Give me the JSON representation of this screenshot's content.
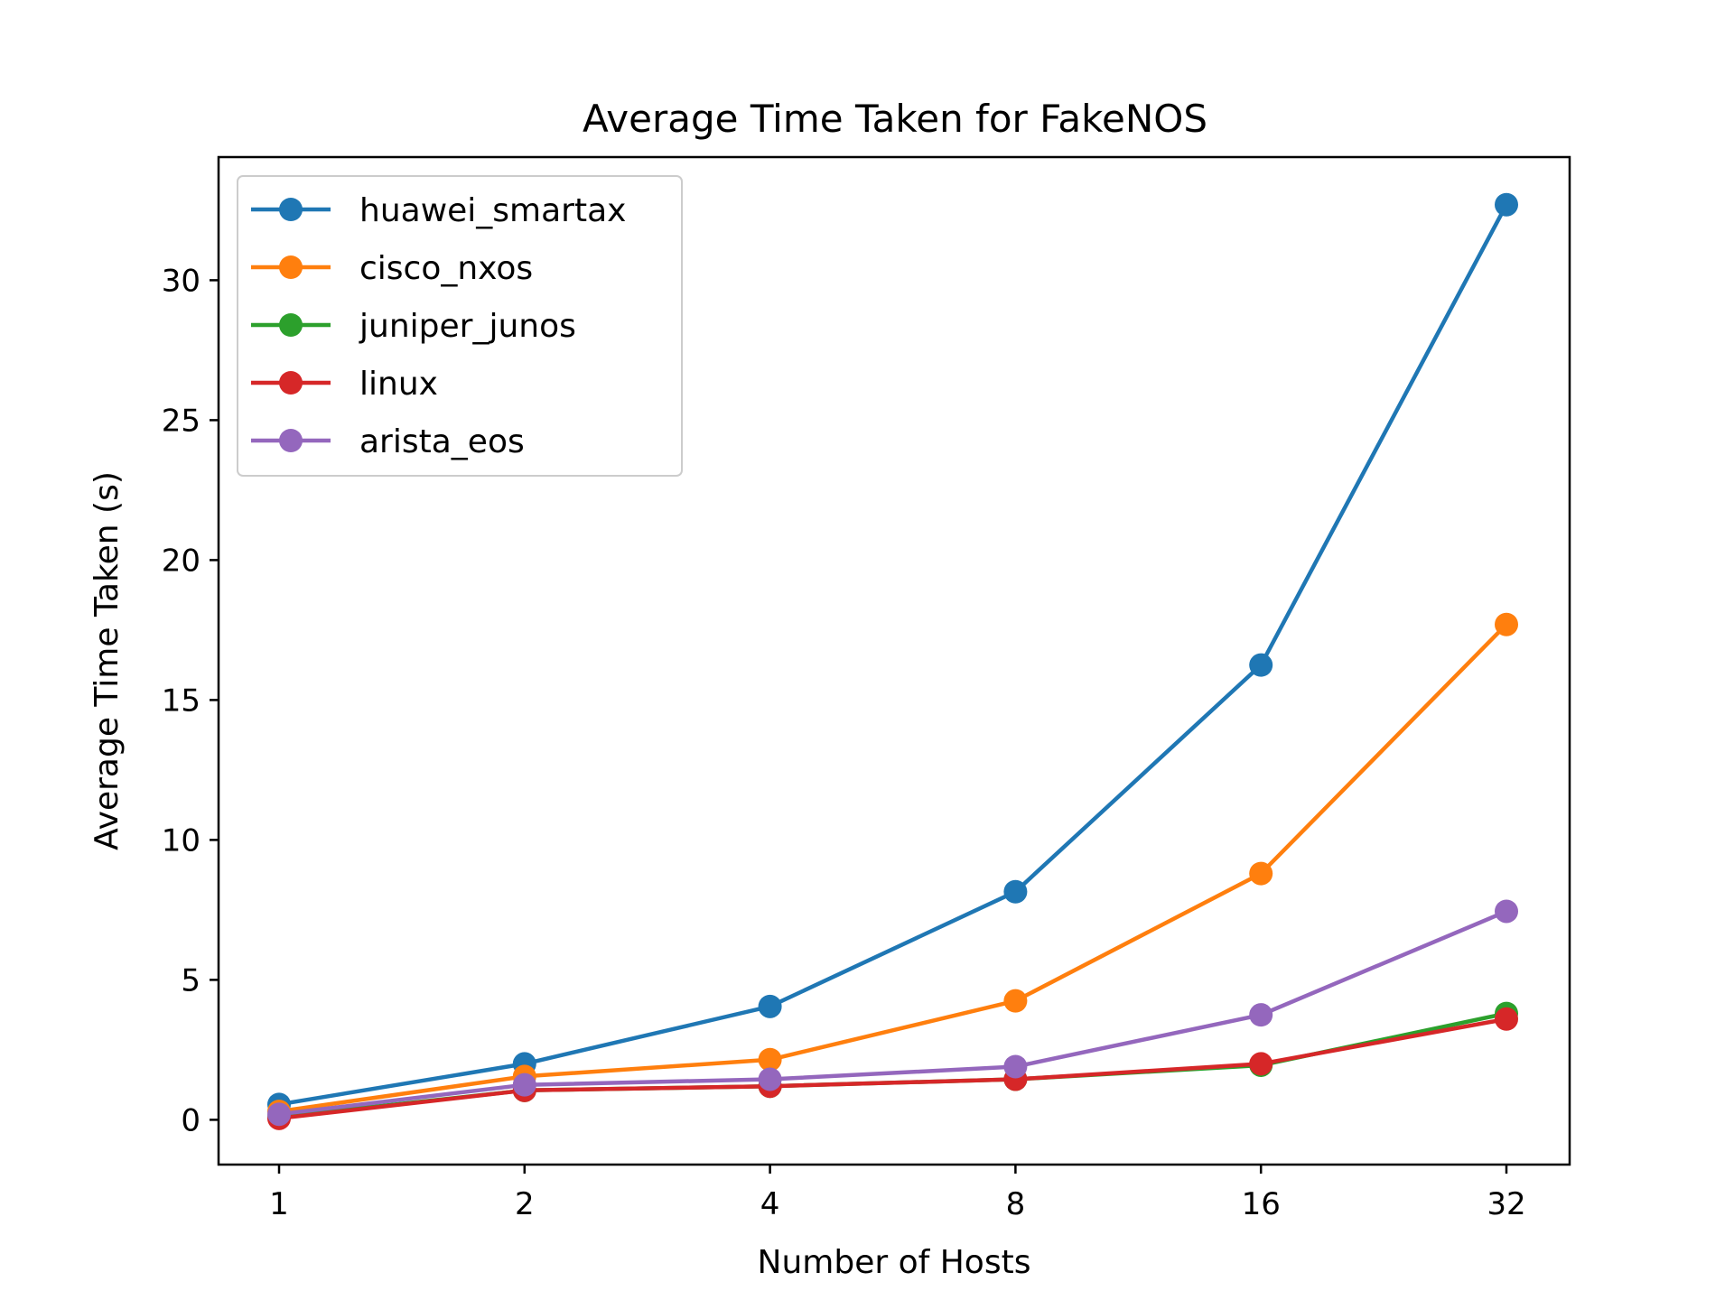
{
  "chart_data": {
    "type": "line",
    "title": "Average Time Taken for FakeNOS",
    "xlabel": "Number of Hosts",
    "ylabel": "Average Time Taken (s)",
    "x": [
      1,
      2,
      4,
      8,
      16,
      32
    ],
    "x_scale": "log2",
    "xtick_labels": [
      "1",
      "2",
      "4",
      "8",
      "16",
      "32"
    ],
    "ylim": [
      -1.6,
      34.4
    ],
    "yticks": [
      0,
      5,
      10,
      15,
      20,
      25,
      30
    ],
    "ytick_labels": [
      "0",
      "5",
      "10",
      "15",
      "20",
      "25",
      "30"
    ],
    "grid": false,
    "legend_position": "upper left",
    "series": [
      {
        "name": "huawei_smartax",
        "color": "#1f77b4",
        "values": [
          0.55,
          2.0,
          4.05,
          8.15,
          16.25,
          32.7
        ]
      },
      {
        "name": "cisco_nxos",
        "color": "#ff7f0e",
        "values": [
          0.3,
          1.55,
          2.15,
          4.25,
          8.8,
          17.7
        ]
      },
      {
        "name": "juniper_junos",
        "color": "#2ca02c",
        "values": [
          0.1,
          1.05,
          1.2,
          1.45,
          1.95,
          3.8
        ]
      },
      {
        "name": "linux",
        "color": "#d62728",
        "values": [
          0.05,
          1.05,
          1.2,
          1.45,
          2.0,
          3.6
        ]
      },
      {
        "name": "arista_eos",
        "color": "#9467bd",
        "values": [
          0.2,
          1.25,
          1.45,
          1.9,
          3.75,
          7.45
        ]
      }
    ]
  }
}
